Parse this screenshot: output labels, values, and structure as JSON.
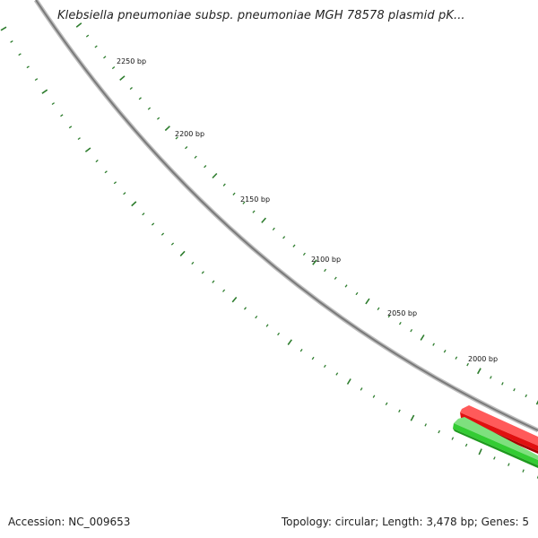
{
  "title": "Klebsiella pneumoniae subsp. pneumoniae MGH 78578 plasmid pK...",
  "accession": "Accession: NC_009653",
  "summary": "Topology: circular; Length: 3,478 bp; Genes: 5",
  "ticks": [
    {
      "label": "2250 bp",
      "bp": 2250
    },
    {
      "label": "2200 bp",
      "bp": 2200
    },
    {
      "label": "2150 bp",
      "bp": 2150
    },
    {
      "label": "2100 bp",
      "bp": 2100
    },
    {
      "label": "2050 bp",
      "bp": 2050
    },
    {
      "label": "2000 bp",
      "bp": 2000
    }
  ],
  "colors": {
    "backbone": "#8a8a8a",
    "tick": "#2e7d2e",
    "forward_gene": "#e01010",
    "reverse_gene": "#33cc33"
  }
}
